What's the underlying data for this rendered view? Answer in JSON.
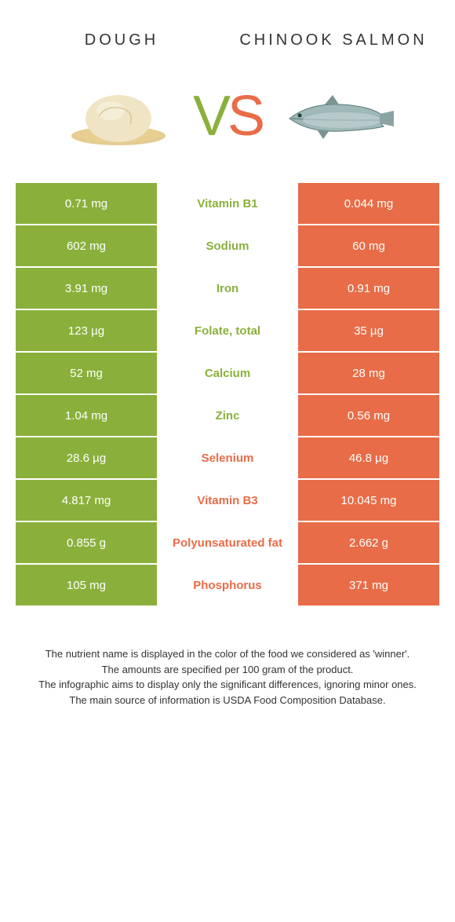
{
  "header": {
    "left_title": "Dough",
    "right_title": "Chinook Salmon",
    "vs_text_v": "V",
    "vs_text_s": "S"
  },
  "colors": {
    "left": "#8ab03b",
    "right": "#e86c47",
    "background": "#ffffff"
  },
  "rows": [
    {
      "left": "0.71 mg",
      "label": "Vitamin B1",
      "right": "0.044 mg",
      "winner": "left"
    },
    {
      "left": "602 mg",
      "label": "Sodium",
      "right": "60 mg",
      "winner": "left"
    },
    {
      "left": "3.91 mg",
      "label": "Iron",
      "right": "0.91 mg",
      "winner": "left"
    },
    {
      "left": "123 µg",
      "label": "Folate, total",
      "right": "35 µg",
      "winner": "left"
    },
    {
      "left": "52 mg",
      "label": "Calcium",
      "right": "28 mg",
      "winner": "left"
    },
    {
      "left": "1.04 mg",
      "label": "Zinc",
      "right": "0.56 mg",
      "winner": "left"
    },
    {
      "left": "28.6 µg",
      "label": "Selenium",
      "right": "46.8 µg",
      "winner": "right"
    },
    {
      "left": "4.817 mg",
      "label": "Vitamin B3",
      "right": "10.045 mg",
      "winner": "right"
    },
    {
      "left": "0.855 g",
      "label": "Polyunsaturated fat",
      "right": "2.662 g",
      "winner": "right"
    },
    {
      "left": "105 mg",
      "label": "Phosphorus",
      "right": "371 mg",
      "winner": "right"
    }
  ],
  "footnotes": [
    "The nutrient name is displayed in the color of the food we considered as 'winner'.",
    "The amounts are specified per 100 gram of the product.",
    "The infographic aims to display only the significant differences, ignoring minor ones.",
    "The main source of information is USDA Food Composition Database."
  ]
}
